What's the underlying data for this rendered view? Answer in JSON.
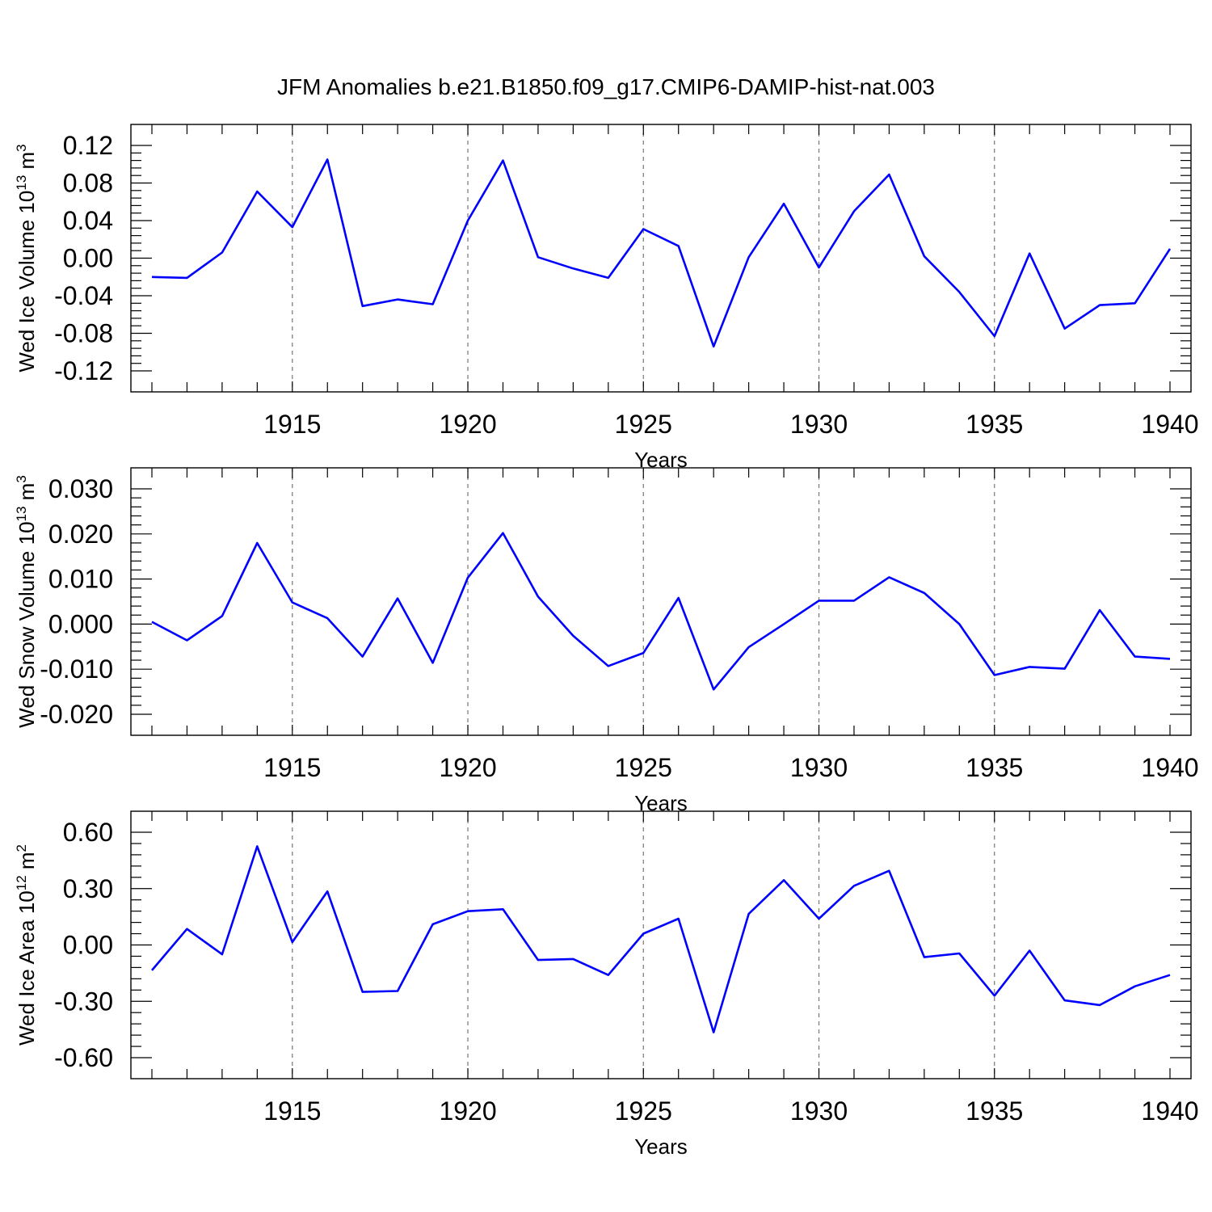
{
  "title": "JFM Anomalies b.e21.B1850.f09_g17.CMIP6-DAMIP-hist-nat.003",
  "colors": {
    "line": "#0000ff",
    "grid": "#777777",
    "axis": "#000000"
  },
  "chart_data": [
    {
      "type": "line",
      "xlabel": "Years",
      "ylabel": {
        "prefix": "Wed Ice Volume 10",
        "exponent": "13",
        "unit": " m",
        "unit_exponent": "3"
      },
      "xlim": [
        1911,
        1940
      ],
      "ylim": [
        -0.12,
        0.12
      ],
      "x_ticks": [
        "1915",
        "1920",
        "1925",
        "1930",
        "1935",
        "1940"
      ],
      "y_ticks": [
        "-0.12",
        "-0.08",
        "-0.04",
        "0.00",
        "0.04",
        "0.08",
        "0.12"
      ],
      "grid": "vertical dashed at labeled years",
      "x": [
        1911,
        1912,
        1913,
        1914,
        1915,
        1916,
        1917,
        1918,
        1919,
        1920,
        1921,
        1922,
        1923,
        1924,
        1925,
        1926,
        1927,
        1928,
        1929,
        1930,
        1931,
        1932,
        1933,
        1934,
        1935,
        1936,
        1937,
        1938,
        1939,
        1940
      ],
      "values": [
        -0.02,
        -0.021,
        0.006,
        0.071,
        0.033,
        0.105,
        -0.051,
        -0.044,
        -0.049,
        0.04,
        0.104,
        0.001,
        -0.011,
        -0.021,
        0.031,
        0.013,
        -0.094,
        0.001,
        0.058,
        -0.01,
        0.05,
        0.089,
        0.002,
        -0.036,
        -0.083,
        0.005,
        -0.075,
        -0.05,
        -0.048,
        0.01
      ]
    },
    {
      "type": "line",
      "xlabel": "Years",
      "ylabel": {
        "prefix": "Wed Snow Volume 10",
        "exponent": "13",
        "unit": " m",
        "unit_exponent": "3"
      },
      "xlim": [
        1911,
        1940
      ],
      "ylim": [
        -0.02,
        0.03
      ],
      "x_ticks": [
        "1915",
        "1920",
        "1925",
        "1930",
        "1935",
        "1940"
      ],
      "y_ticks": [
        "-0.020",
        "-0.010",
        "0.000",
        "0.010",
        "0.020",
        "0.030"
      ],
      "grid": "vertical dashed at labeled years",
      "x": [
        1911,
        1912,
        1913,
        1914,
        1915,
        1916,
        1917,
        1918,
        1919,
        1920,
        1921,
        1922,
        1923,
        1924,
        1925,
        1926,
        1927,
        1928,
        1929,
        1930,
        1931,
        1932,
        1933,
        1934,
        1935,
        1936,
        1937,
        1938,
        1939,
        1940
      ],
      "values": [
        0.0005,
        -0.0036,
        0.0018,
        0.018,
        0.0048,
        0.0013,
        -0.0072,
        0.0057,
        -0.0086,
        0.0103,
        0.0202,
        0.0061,
        -0.0026,
        -0.0093,
        -0.0064,
        0.0058,
        -0.0145,
        -0.0051,
        0.0,
        0.0052,
        0.0052,
        0.0104,
        0.0069,
        0.0,
        -0.0113,
        -0.0095,
        -0.0099,
        0.0031,
        -0.0072,
        -0.0077
      ]
    },
    {
      "type": "line",
      "xlabel": "Years",
      "ylabel": {
        "prefix": "Wed Ice Area 10",
        "exponent": "12",
        "unit": " m",
        "unit_exponent": "2"
      },
      "xlim": [
        1911,
        1940
      ],
      "ylim": [
        -0.6,
        0.6
      ],
      "x_ticks": [
        "1915",
        "1920",
        "1925",
        "1930",
        "1935",
        "1940"
      ],
      "y_ticks": [
        "-0.60",
        "-0.30",
        "0.00",
        "0.30",
        "0.60"
      ],
      "grid": "vertical dashed at labeled years",
      "x": [
        1911,
        1912,
        1913,
        1914,
        1915,
        1916,
        1917,
        1918,
        1919,
        1920,
        1921,
        1922,
        1923,
        1924,
        1925,
        1926,
        1927,
        1928,
        1929,
        1930,
        1931,
        1932,
        1933,
        1934,
        1935,
        1936,
        1937,
        1938,
        1939,
        1940
      ],
      "values": [
        -0.135,
        0.085,
        -0.05,
        0.525,
        0.015,
        0.285,
        -0.25,
        -0.245,
        0.11,
        0.18,
        0.19,
        -0.08,
        -0.075,
        -0.16,
        0.06,
        0.14,
        -0.465,
        0.165,
        0.345,
        0.14,
        0.315,
        0.395,
        -0.065,
        -0.045,
        -0.27,
        -0.03,
        -0.295,
        -0.32,
        -0.22,
        -0.16
      ]
    }
  ]
}
